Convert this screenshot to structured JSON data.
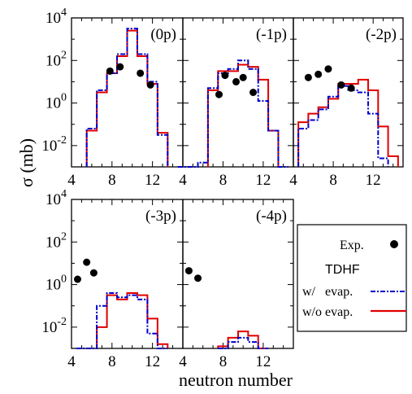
{
  "chart_data": {
    "type": "step-histogram",
    "ylabel": "σ (mb)",
    "xlabel": "neutron number",
    "xlim": [
      4,
      15
    ],
    "ylim_log10": [
      -3,
      4
    ],
    "y_ticks": [
      {
        "label": "10",
        "exp": "4",
        "log": 4
      },
      {
        "label": "10",
        "exp": "2",
        "log": 2
      },
      {
        "label": "10",
        "exp": "0",
        "log": 0
      },
      {
        "label": "10",
        "exp": "-2",
        "log": -2
      }
    ],
    "x_ticks": [
      "4",
      "8",
      "12"
    ],
    "x_tick_values": [
      4,
      8,
      12
    ],
    "colors": {
      "exp": "#000000",
      "with_evap": "#0000cc",
      "without_evap": "#e00000"
    },
    "legend": {
      "exp_label": "Exp.",
      "model_header": "TDHF",
      "with_evap_label": "w/   evap.",
      "without_evap_label": "w/o evap."
    },
    "panels": [
      {
        "label": "(0p)",
        "exp": [
          [
            7.8,
            1.5
          ],
          [
            8.8,
            1.7
          ],
          [
            10.8,
            1.4
          ],
          [
            11.8,
            0.85
          ]
        ],
        "with_evap": [
          [
            6,
            -1.2
          ],
          [
            7,
            0.6
          ],
          [
            8,
            1.4
          ],
          [
            9,
            2.3
          ],
          [
            10,
            3.5
          ],
          [
            11,
            2.3
          ],
          [
            12,
            1.0
          ],
          [
            13,
            -1.5
          ]
        ],
        "without_evap": [
          [
            6,
            -1.3
          ],
          [
            7,
            0.5
          ],
          [
            8,
            1.4
          ],
          [
            9,
            2.2
          ],
          [
            10,
            3.4
          ],
          [
            11,
            2.2
          ],
          [
            12,
            0.9
          ],
          [
            13,
            -1.4
          ]
        ]
      },
      {
        "label": "(-1p)",
        "exp": [
          [
            7.6,
            0.4
          ],
          [
            8.2,
            1.3
          ],
          [
            9.3,
            1.0
          ],
          [
            10.0,
            1.2
          ],
          [
            11.0,
            0.5
          ]
        ],
        "with_evap": [
          [
            4,
            -3
          ],
          [
            5,
            -3
          ],
          [
            6,
            -2.8
          ],
          [
            7,
            0.7
          ],
          [
            8,
            1.4
          ],
          [
            9,
            1.6
          ],
          [
            10,
            2.0
          ],
          [
            11,
            1.6
          ],
          [
            12,
            0.1
          ],
          [
            13,
            -1.3
          ],
          [
            14,
            -3
          ]
        ],
        "without_evap": [
          [
            7,
            0.6
          ],
          [
            8,
            1.5
          ],
          [
            9,
            1.5
          ],
          [
            10,
            1.8
          ],
          [
            11,
            1.7
          ],
          [
            12,
            1.1
          ],
          [
            13,
            -1.3
          ]
        ]
      },
      {
        "label": "(-2p)",
        "exp": [
          [
            5.5,
            1.2
          ],
          [
            6.5,
            1.35
          ],
          [
            7.5,
            1.6
          ],
          [
            8.8,
            0.85
          ],
          [
            9.8,
            0.7
          ]
        ],
        "with_evap": [
          [
            5,
            -1.2
          ],
          [
            6,
            -0.8
          ],
          [
            7,
            -0.3
          ],
          [
            8,
            0.3
          ],
          [
            9,
            0.8
          ],
          [
            10,
            0.6
          ],
          [
            11,
            0.5
          ],
          [
            12,
            -0.5
          ],
          [
            13,
            -2.6
          ]
        ],
        "without_evap": [
          [
            5,
            -0.9
          ],
          [
            6,
            -0.5
          ],
          [
            7,
            -0.2
          ],
          [
            8,
            0.2
          ],
          [
            9,
            0.9
          ],
          [
            10,
            0.9
          ],
          [
            11,
            1.1
          ],
          [
            12,
            0.6
          ],
          [
            13,
            -1.1
          ],
          [
            14,
            -2.5
          ]
        ]
      },
      {
        "label": "(-3p)",
        "exp": [
          [
            4.6,
            0.25
          ],
          [
            5.5,
            1.05
          ],
          [
            6.2,
            0.55
          ]
        ],
        "with_evap": [
          [
            5,
            -3
          ],
          [
            6,
            -3
          ],
          [
            7,
            -1.0
          ],
          [
            8,
            -0.4
          ],
          [
            9,
            -0.6
          ],
          [
            10,
            -0.5
          ],
          [
            11,
            -0.7
          ],
          [
            12,
            -2.3
          ],
          [
            13,
            -3
          ]
        ],
        "without_evap": [
          [
            7,
            -2.0
          ],
          [
            8,
            -0.5
          ],
          [
            9,
            -0.7
          ],
          [
            10,
            -0.4
          ],
          [
            11,
            -0.5
          ],
          [
            12,
            -1.6
          ],
          [
            13,
            -2.8
          ]
        ]
      },
      {
        "label": "(-4p)",
        "exp": [
          [
            4.6,
            0.65
          ],
          [
            5.5,
            0.3
          ]
        ],
        "with_evap": [
          [
            8,
            -3
          ],
          [
            9,
            -2.7
          ],
          [
            10,
            -2.5
          ],
          [
            11,
            -2.7
          ],
          [
            12,
            -3
          ]
        ],
        "without_evap": [
          [
            8,
            -2.9
          ],
          [
            9,
            -2.5
          ],
          [
            10,
            -2.2
          ],
          [
            11,
            -2.4
          ],
          [
            12,
            -3
          ]
        ]
      }
    ]
  }
}
